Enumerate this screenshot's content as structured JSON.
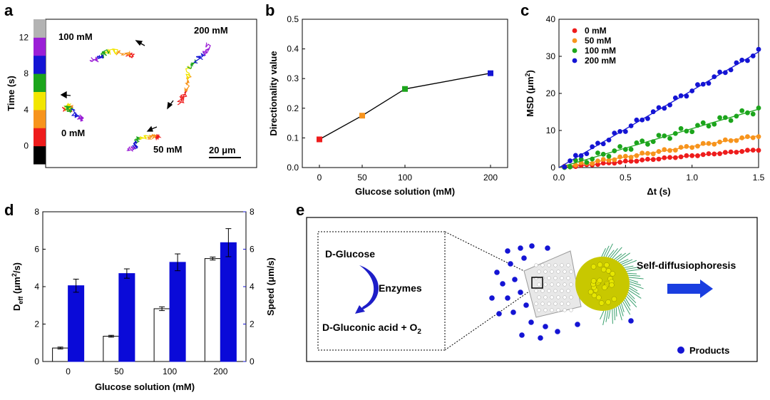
{
  "colors": {
    "red": "#ee1c1c",
    "orange": "#f7941d",
    "green": "#1ca51c",
    "blue": "#1414d4",
    "yellow": "#f2e600",
    "purple": "#9b1fd6",
    "gray": "#b3b3b3",
    "black": "#000000",
    "dark_blue_bar": "#0a0ad8"
  },
  "panels": {
    "a": {
      "letter": "a",
      "colorbar": {
        "ylabel": "Time (s)",
        "ticks": [
          "0",
          "4",
          "8",
          "12"
        ],
        "range": [
          -2,
          14
        ],
        "segment_colors": [
          "#000000",
          "#ee1c1c",
          "#f7941d",
          "#f2e600",
          "#1ca51c",
          "#1414d4",
          "#9b1fd6",
          "#b3b3b3"
        ]
      },
      "labels": {
        "c0": "0 mM",
        "c50": "50 mM",
        "c100": "100 mM",
        "c200": "200 mM"
      },
      "scale_bar": "20 μm"
    },
    "b": {
      "letter": "b"
    },
    "c": {
      "letter": "c"
    },
    "d": {
      "letter": "d"
    },
    "e": {
      "letter": "e",
      "reactant": "D-Glucose",
      "catalyst": "Enzymes",
      "product_main": "D-Gluconic acid + O",
      "product_sub": "2",
      "motion_label": "Self-diffusiophoresis",
      "legend_label": "Products"
    }
  },
  "chart_data": [
    {
      "id": "b",
      "type": "line",
      "title": "",
      "xlabel": "Glucose solution (mM)",
      "ylabel": "Directionality value",
      "x": [
        0,
        50,
        100,
        200
      ],
      "values": [
        0.095,
        0.175,
        0.265,
        0.318
      ],
      "marker_colors": [
        "#ee1c1c",
        "#f7941d",
        "#1ca51c",
        "#1414d4"
      ],
      "xticks": [
        0,
        50,
        100,
        200
      ],
      "yticks": [
        0.0,
        0.1,
        0.2,
        0.3,
        0.4,
        0.5
      ],
      "xlim": [
        -20,
        220
      ],
      "ylim": [
        0,
        0.5
      ]
    },
    {
      "id": "c",
      "type": "scatter",
      "xlabel": "Δt (s)",
      "ylabel_main": "MSD (μm",
      "ylabel_sup": "2",
      "ylabel_end": ")",
      "xticks": [
        0.0,
        0.5,
        1.0,
        1.5
      ],
      "yticks": [
        0,
        10,
        20,
        30,
        40
      ],
      "xlim": [
        0,
        1.5
      ],
      "ylim": [
        0,
        40
      ],
      "legend": "top-left",
      "series": [
        {
          "name": "0 mM",
          "color": "#ee1c1c",
          "slope": 3.2,
          "noise": 0.15
        },
        {
          "name": "50 mM",
          "color": "#f7941d",
          "slope": 5.7,
          "noise": 0.35
        },
        {
          "name": "100 mM",
          "color": "#1ca51c",
          "slope": 10.5,
          "noise": 0.9
        },
        {
          "name": "200 mM",
          "color": "#1414d4",
          "slope": 20.8,
          "noise": 0.7
        }
      ]
    },
    {
      "id": "d",
      "type": "bar",
      "xlabel": "Glucose solution (mM)",
      "ylabel_left_main": "D",
      "ylabel_left_sub": "eff",
      "ylabel_left_mid": " (μm",
      "ylabel_left_sup": "2",
      "ylabel_left_end": "/s)",
      "ylabel_right": "Speed (μm/s)",
      "categories": [
        "0",
        "50",
        "100",
        "200"
      ],
      "series": [
        {
          "name": "Deff",
          "axis": "left",
          "color": "#ffffff",
          "edge": "#000000",
          "values": [
            0.72,
            1.35,
            2.82,
            5.5
          ],
          "errors": [
            0.05,
            0.05,
            0.1,
            0.08
          ]
        },
        {
          "name": "Speed",
          "axis": "right",
          "color": "#0a0ad8",
          "edge": "#0a0ad8",
          "values": [
            4.05,
            4.7,
            5.3,
            6.35
          ],
          "errors": [
            0.35,
            0.25,
            0.45,
            0.75
          ]
        }
      ],
      "yticks_left": [
        0,
        2,
        4,
        6,
        8
      ],
      "yticks_right": [
        0,
        2,
        4,
        6,
        8
      ],
      "ylim": [
        0,
        8
      ]
    }
  ]
}
